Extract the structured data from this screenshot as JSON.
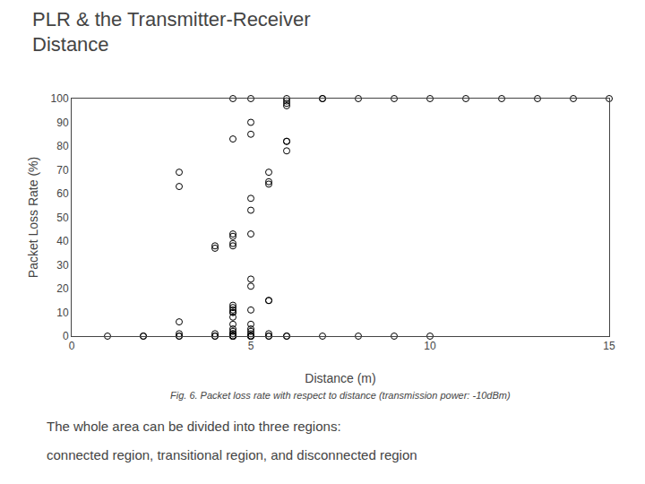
{
  "chart_data": {
    "type": "scatter",
    "title": "PLR & the Transmitter-Receiver\nDistance",
    "x_label": "Distance (m)",
    "y_label": "Packet Loss Rate (%)",
    "annotations": [
      "Fig. 6. Packet loss rate with respect to distance (transmission power: -10dBm)",
      "The whole area can be divided into three regions:",
      "connected region, transitional region, and disconnected region"
    ],
    "x": [
      1.0,
      2.0,
      2.0,
      3.0,
      3.0,
      3.0,
      3.0,
      3.0,
      3.0,
      4.0,
      4.0,
      4.0,
      4.0,
      4.0,
      4.5,
      4.5,
      4.5,
      4.5,
      4.5,
      4.5,
      4.5,
      4.5,
      4.5,
      4.5,
      4.5,
      4.5,
      4.5,
      4.5,
      4.5,
      4.5,
      4.5,
      4.5,
      4.5,
      4.5,
      4.5,
      4.5,
      5.0,
      5.0,
      5.0,
      5.0,
      5.0,
      5.0,
      5.0,
      5.0,
      5.0,
      5.0,
      5.0,
      5.0,
      5.0,
      5.0,
      5.0,
      5.0,
      5.0,
      5.5,
      5.5,
      5.5,
      5.5,
      5.5,
      5.5,
      5.5,
      5.5,
      6.0,
      6.0,
      6.0,
      6.0,
      6.0,
      6.0,
      6.0,
      6.0,
      6.0,
      7.0,
      7.0,
      7.0,
      8.0,
      8.0,
      9.0,
      9.0,
      10.0,
      10.0,
      11.0,
      12.0,
      13.0,
      14.0,
      15.0
    ],
    "values": [
      0,
      0,
      0,
      0,
      0,
      1,
      6,
      63,
      69,
      0,
      0,
      1,
      37,
      38,
      0,
      0,
      0,
      0,
      0,
      1,
      1,
      2,
      3,
      5,
      8,
      10,
      10,
      11,
      12,
      13,
      38,
      39,
      42,
      43,
      83,
      100,
      0,
      0,
      0,
      0,
      1,
      2,
      3,
      5,
      11,
      21,
      24,
      43,
      53,
      58,
      85,
      90,
      100,
      0,
      0,
      1,
      15,
      15,
      64,
      65,
      69,
      0,
      0,
      78,
      82,
      82,
      97,
      98,
      99,
      100,
      0,
      100,
      100,
      0,
      100,
      0,
      100,
      0,
      100,
      100,
      100,
      100,
      100,
      100
    ],
    "color": "#000000",
    "marker": "circle-open",
    "xlim": [
      0,
      15
    ],
    "ylim": [
      0,
      100
    ],
    "xticks": [
      0,
      5,
      10,
      15
    ],
    "yticks": [
      0,
      10,
      20,
      30,
      40,
      50,
      60,
      70,
      80,
      90,
      100
    ],
    "grid": false
  }
}
